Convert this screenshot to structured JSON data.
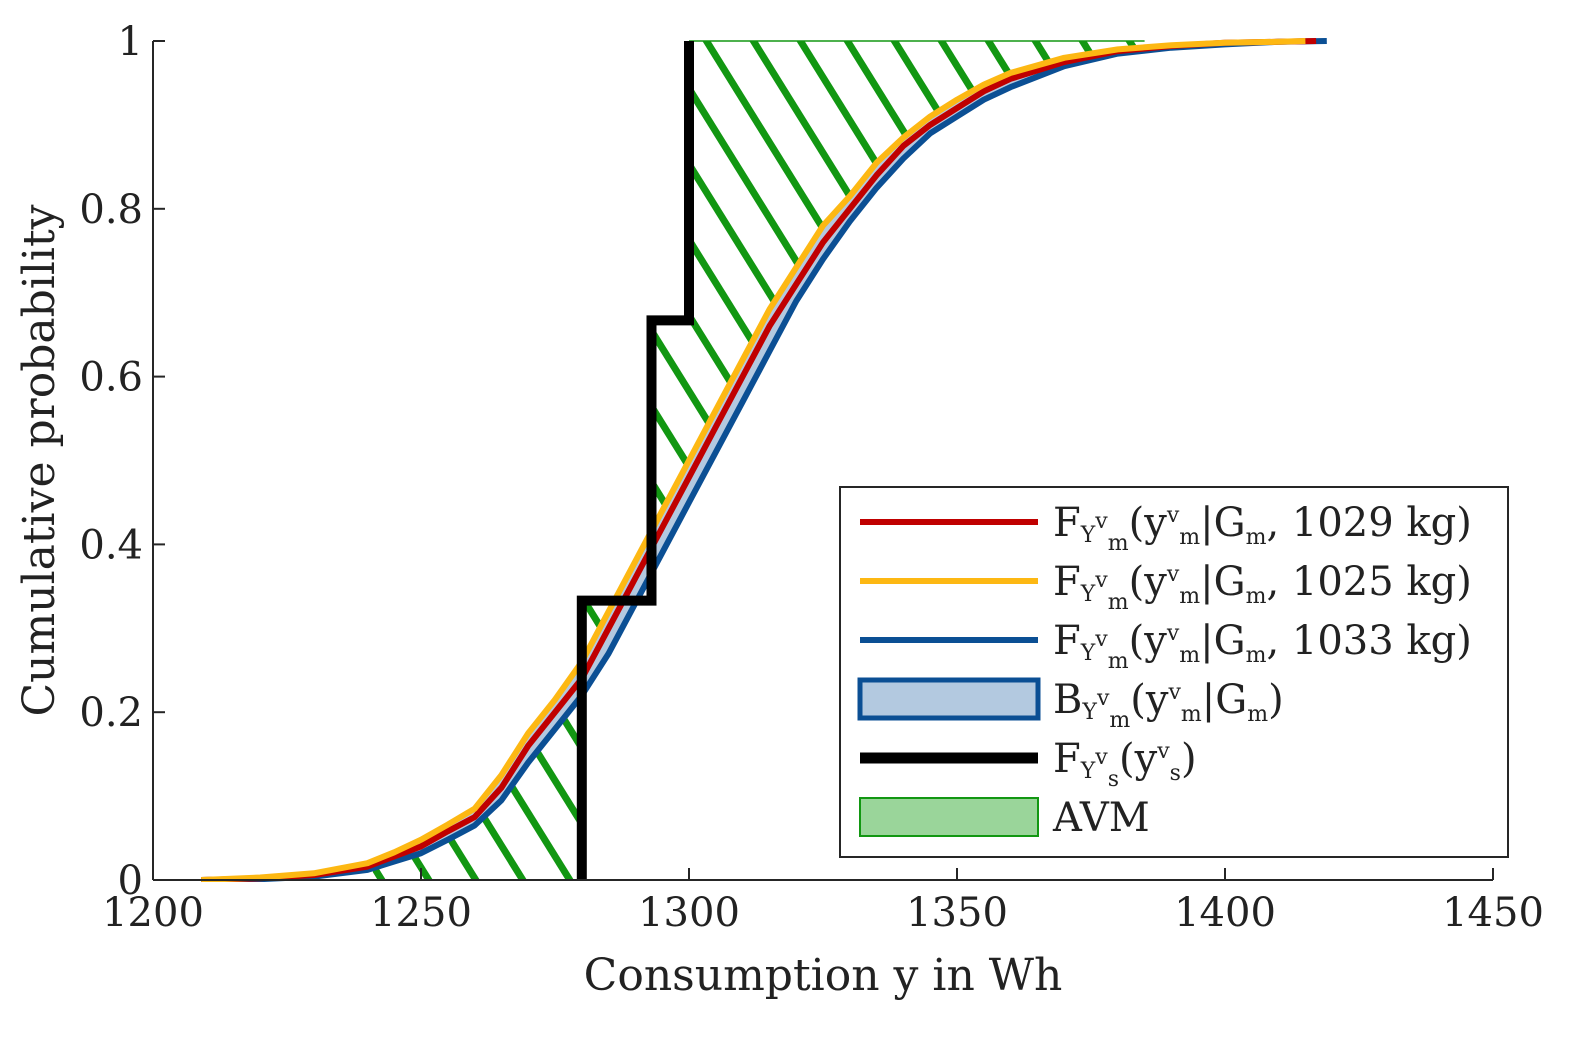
{
  "chart_data": {
    "type": "line",
    "xlabel": "Consumption y in Wh",
    "ylabel": "Cumulative probability",
    "xlim": [
      1200,
      1450
    ],
    "ylim": [
      0,
      1
    ],
    "xticks": [
      1200,
      1250,
      1300,
      1350,
      1400,
      1450
    ],
    "yticks": [
      0,
      0.2,
      0.4,
      0.6,
      0.8,
      1
    ],
    "ytick_labels": [
      "0",
      "0.2",
      "0.4",
      "0.6",
      "0.8",
      "1"
    ],
    "grid": false,
    "legend_position": "bottom-right",
    "series": [
      {
        "name": "F_Y_m^v(y_m^v|G_m, 1029 kg)",
        "color": "#c00000",
        "x": [
          1209,
          1220,
          1230,
          1240,
          1245,
          1250,
          1255,
          1260,
          1265,
          1270,
          1275,
          1280,
          1285,
          1290,
          1295,
          1300,
          1305,
          1310,
          1315,
          1320,
          1325,
          1330,
          1335,
          1340,
          1345,
          1350,
          1355,
          1360,
          1370,
          1380,
          1390,
          1400,
          1410,
          1417
        ],
        "values": [
          0,
          0.002,
          0.006,
          0.016,
          0.028,
          0.04,
          0.058,
          0.075,
          0.11,
          0.16,
          0.2,
          0.24,
          0.3,
          0.36,
          0.42,
          0.48,
          0.54,
          0.6,
          0.66,
          0.71,
          0.76,
          0.8,
          0.84,
          0.875,
          0.9,
          0.92,
          0.94,
          0.955,
          0.975,
          0.988,
          0.994,
          0.998,
          0.999,
          1
        ]
      },
      {
        "name": "F_Y_m^v(y_m^v|G_m, 1025 kg)",
        "color": "#fdb813",
        "x": [
          1209,
          1220,
          1230,
          1240,
          1245,
          1250,
          1255,
          1260,
          1265,
          1270,
          1275,
          1280,
          1285,
          1290,
          1295,
          1300,
          1305,
          1310,
          1315,
          1320,
          1325,
          1330,
          1335,
          1340,
          1345,
          1350,
          1355,
          1360,
          1370,
          1380,
          1390,
          1400,
          1410,
          1415
        ],
        "values": [
          0,
          0.003,
          0.008,
          0.02,
          0.033,
          0.048,
          0.066,
          0.085,
          0.125,
          0.175,
          0.215,
          0.26,
          0.32,
          0.38,
          0.44,
          0.5,
          0.56,
          0.62,
          0.68,
          0.73,
          0.78,
          0.815,
          0.855,
          0.885,
          0.91,
          0.93,
          0.948,
          0.962,
          0.98,
          0.99,
          0.995,
          0.998,
          0.999,
          1
        ]
      },
      {
        "name": "F_Y_m^v(y_m^v|G_m, 1033 kg)",
        "color": "#0b4f94",
        "x": [
          1209,
          1220,
          1230,
          1240,
          1245,
          1250,
          1255,
          1260,
          1265,
          1270,
          1275,
          1280,
          1285,
          1290,
          1295,
          1300,
          1305,
          1310,
          1315,
          1320,
          1325,
          1330,
          1335,
          1340,
          1345,
          1350,
          1355,
          1360,
          1370,
          1380,
          1390,
          1400,
          1410,
          1419
        ],
        "values": [
          0,
          0.001,
          0.004,
          0.012,
          0.022,
          0.032,
          0.048,
          0.065,
          0.095,
          0.14,
          0.18,
          0.22,
          0.27,
          0.33,
          0.39,
          0.45,
          0.51,
          0.57,
          0.63,
          0.69,
          0.74,
          0.785,
          0.825,
          0.86,
          0.89,
          0.91,
          0.93,
          0.945,
          0.97,
          0.985,
          0.992,
          0.996,
          0.999,
          1
        ]
      },
      {
        "name": "F_Y_s^v(y_s^v)",
        "color": "#000000",
        "step": true,
        "x": [
          1280,
          1280,
          1293,
          1293,
          1300,
          1300
        ],
        "values": [
          0,
          0.333,
          0.333,
          0.667,
          0.667,
          1
        ]
      }
    ],
    "band": {
      "name": "B_Y_m^v(y_m^v|G_m)",
      "fill": "#b3c9e0",
      "edge": "#0b4f94"
    },
    "area": {
      "name": "AVM",
      "fill": "#9ad59a",
      "hatch": "#129712"
    },
    "legend": [
      {
        "kind": "line",
        "color": "#c00000",
        "F": "F",
        "Y": "Y",
        "sub": "m",
        "sup": "v",
        "arg": "(y",
        "argsub": "m",
        "argsup": "v",
        "rest": "|G",
        "restsub": "m",
        "tail": ", 1029 kg)"
      },
      {
        "kind": "line",
        "color": "#fdb813",
        "F": "F",
        "Y": "Y",
        "sub": "m",
        "sup": "v",
        "arg": "(y",
        "argsub": "m",
        "argsup": "v",
        "rest": "|G",
        "restsub": "m",
        "tail": ", 1025 kg)"
      },
      {
        "kind": "line",
        "color": "#0b4f94",
        "F": "F",
        "Y": "Y",
        "sub": "m",
        "sup": "v",
        "arg": "(y",
        "argsub": "m",
        "argsup": "v",
        "rest": "|G",
        "restsub": "m",
        "tail": ", 1033 kg)"
      },
      {
        "kind": "band",
        "color": "#0b4f94",
        "F": "B",
        "Y": "Y",
        "sub": "m",
        "sup": "v",
        "arg": "(y",
        "argsub": "m",
        "argsup": "v",
        "rest": "|G",
        "restsub": "m",
        "tail": ")"
      },
      {
        "kind": "thick",
        "color": "#000000",
        "F": "F",
        "Y": "Y",
        "sub": "s",
        "sup": "v",
        "arg": "(y",
        "argsub": "s",
        "argsup": "v",
        "rest": "",
        "restsub": "",
        "tail": ")"
      },
      {
        "kind": "area",
        "color": "#129712",
        "F": "AVM",
        "Y": "",
        "sub": "",
        "sup": "",
        "arg": "",
        "argsub": "",
        "argsup": "",
        "rest": "",
        "restsub": "",
        "tail": ""
      }
    ]
  }
}
